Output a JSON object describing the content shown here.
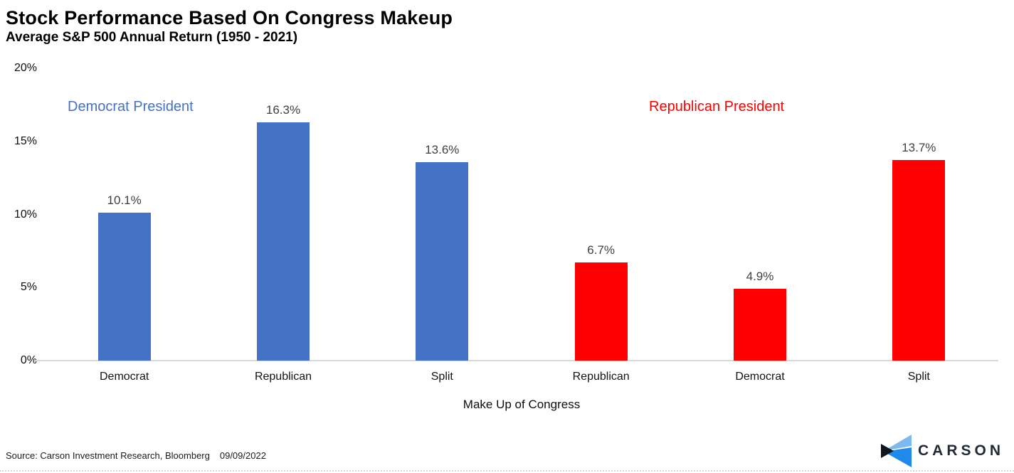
{
  "header": {
    "title": "Stock Performance Based On Congress Makeup",
    "subtitle": "Average S&P 500 Annual Return (1950 - 2021)"
  },
  "chart_data": {
    "type": "bar",
    "title": "Stock Performance Based On Congress Makeup",
    "subtitle": "Average S&P 500 Annual Return (1950 - 2021)",
    "xlabel": "Make Up of Congress",
    "ylabel": "",
    "ylim": [
      0,
      20
    ],
    "grid": false,
    "yticks": [
      {
        "v": 0,
        "label": "0%"
      },
      {
        "v": 5,
        "label": "5%"
      },
      {
        "v": 10,
        "label": "10%"
      },
      {
        "v": 15,
        "label": "15%"
      },
      {
        "v": 20,
        "label": "20%"
      }
    ],
    "categories": [
      "Democrat",
      "Republican",
      "Split",
      "Republican",
      "Democrat",
      "Split"
    ],
    "values": [
      10.1,
      16.3,
      13.6,
      6.7,
      4.9,
      13.7
    ],
    "value_labels": [
      "10.1%",
      "16.3%",
      "13.6%",
      "6.7%",
      "4.9%",
      "13.7%"
    ],
    "bar_colors": [
      "#4472C4",
      "#4472C4",
      "#4472C4",
      "#FF0000",
      "#FF0000",
      "#FF0000"
    ],
    "groups": [
      {
        "label": "Democrat President",
        "color": "#4472C4"
      },
      {
        "label": "Republican President",
        "color": "#FF0000"
      }
    ],
    "legend_position": "inside-top",
    "annotations": []
  },
  "footer": {
    "source": "Source: Carson Investment Research, Bloomberg",
    "date": "09/09/2022",
    "logo_text": "CARSON"
  },
  "colors": {
    "democrat_blue": "#4472C4",
    "republican_red": "#FF0000",
    "data_label_gray": "#404040",
    "axis_line_gray": "#D9D9D9",
    "logo_dark": "#10161E",
    "logo_light_blue": "#7CB9EE",
    "logo_bright_blue": "#2089EC",
    "logo_text_navy": "#232B36"
  }
}
